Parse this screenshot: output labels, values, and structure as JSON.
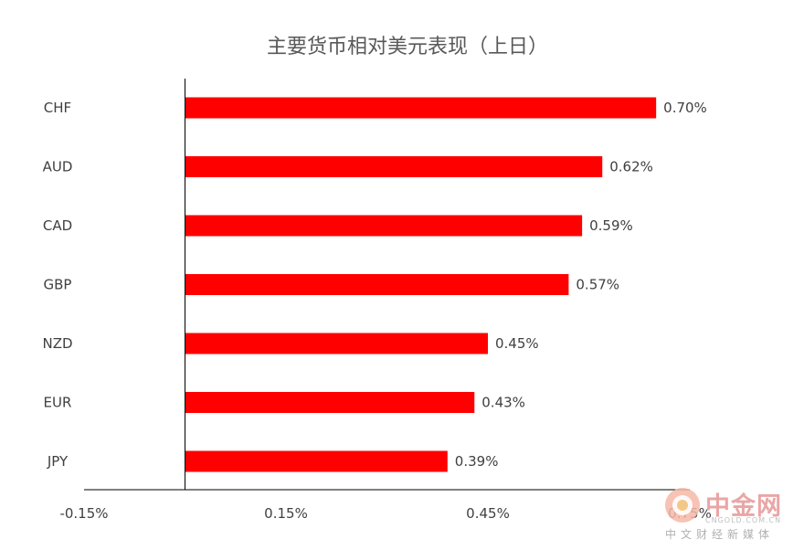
{
  "chart_data": {
    "type": "bar",
    "orientation": "horizontal",
    "title": "主要货币相对美元表现（上日）",
    "categories": [
      "CHF",
      "AUD",
      "CAD",
      "GBP",
      "NZD",
      "EUR",
      "JPY"
    ],
    "values": [
      0.7,
      0.62,
      0.59,
      0.57,
      0.45,
      0.43,
      0.39
    ],
    "value_labels": [
      "0.70%",
      "0.62%",
      "0.59%",
      "0.57%",
      "0.45%",
      "0.43%",
      "0.39%"
    ],
    "x_ticks": [
      -0.15,
      0.15,
      0.45,
      0.75
    ],
    "x_tick_labels": [
      "-0.15%",
      "0.15%",
      "0.45%",
      "0.75%"
    ],
    "xlim": [
      -0.15,
      0.75
    ],
    "bar_color": "#ff0000",
    "grid": false,
    "legend": "none"
  },
  "watermark": {
    "name": "中金网",
    "domain": "CNGOLD.COM.CN",
    "slogan": "中文财经新媒体",
    "color": "#e9a6a6"
  }
}
